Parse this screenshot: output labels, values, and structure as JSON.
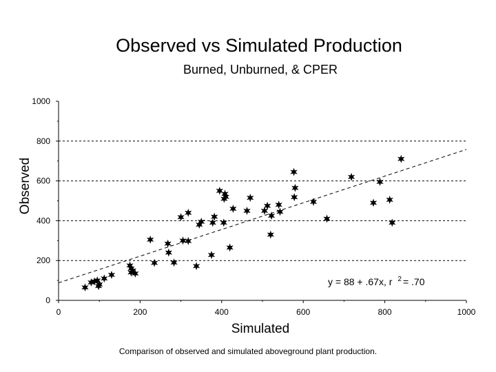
{
  "slide": {
    "title": "Observed vs Simulated Production",
    "subtitle": "Burned, Unburned, & CPER",
    "caption": "Comparison of observed and simulated aboveground plant production."
  },
  "chart_data": {
    "type": "scatter",
    "title": "Observed vs Simulated Production",
    "subtitle": "Burned, Unburned, & CPER",
    "xlabel": "Simulated",
    "ylabel": "Observed",
    "xlim": [
      0,
      1000
    ],
    "ylim": [
      0,
      1000
    ],
    "xticks": [
      0,
      200,
      400,
      600,
      800,
      1000
    ],
    "yticks": [
      0,
      200,
      400,
      600,
      800,
      1000
    ],
    "grid": "horizontal dashed at 200, 400, 600, 800",
    "marker": "star",
    "regression": {
      "intercept": 88,
      "slope": 0.67,
      "r2": 0.7
    },
    "annotation": {
      "prefix": "y = 88 + .67x, r",
      "superscript": "2",
      "suffix": "= .70"
    },
    "points": [
      [
        65,
        65
      ],
      [
        80,
        90
      ],
      [
        88,
        95
      ],
      [
        95,
        100
      ],
      [
        100,
        80
      ],
      [
        98,
        72
      ],
      [
        112,
        110
      ],
      [
        130,
        128
      ],
      [
        175,
        175
      ],
      [
        178,
        160
      ],
      [
        178,
        140
      ],
      [
        182,
        150
      ],
      [
        188,
        135
      ],
      [
        225,
        305
      ],
      [
        235,
        188
      ],
      [
        268,
        285
      ],
      [
        270,
        240
      ],
      [
        283,
        190
      ],
      [
        300,
        418
      ],
      [
        305,
        300
      ],
      [
        318,
        440
      ],
      [
        318,
        298
      ],
      [
        338,
        172
      ],
      [
        345,
        380
      ],
      [
        350,
        395
      ],
      [
        375,
        228
      ],
      [
        378,
        390
      ],
      [
        382,
        420
      ],
      [
        395,
        550
      ],
      [
        405,
        390
      ],
      [
        406,
        510
      ],
      [
        408,
        535
      ],
      [
        410,
        520
      ],
      [
        420,
        265
      ],
      [
        428,
        460
      ],
      [
        462,
        450
      ],
      [
        470,
        515
      ],
      [
        505,
        450
      ],
      [
        512,
        475
      ],
      [
        520,
        330
      ],
      [
        522,
        425
      ],
      [
        540,
        480
      ],
      [
        543,
        445
      ],
      [
        577,
        645
      ],
      [
        578,
        518
      ],
      [
        580,
        565
      ],
      [
        625,
        495
      ],
      [
        658,
        410
      ],
      [
        718,
        620
      ],
      [
        772,
        490
      ],
      [
        788,
        595
      ],
      [
        812,
        505
      ],
      [
        818,
        390
      ],
      [
        840,
        710
      ]
    ]
  }
}
